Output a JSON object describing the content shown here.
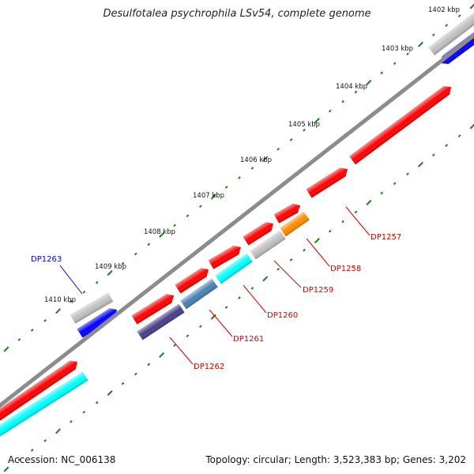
{
  "title": "Desulfotalea psychrophila LSv54, complete genome",
  "accession": "Accession: NC_006138",
  "summary": "Topology: circular; Length: 3,523,383 bp; Genes: 3,202",
  "colors": {
    "backbone": "#8c8c8c",
    "tick": "#1f7a1f",
    "label_red": "#cc0000",
    "label_blue": "#0000cc"
  },
  "kbp_labels": [
    "1402 kbp",
    "1403 kbp",
    "1404 kbp",
    "1405 kbp",
    "1406 kbp",
    "1407 kbp",
    "1408 kbp",
    "1409 kbp",
    "1410 kbp"
  ],
  "genes": [
    {
      "label": "DP1257",
      "color": "#ff0000"
    },
    {
      "label": "DP1258",
      "color": "#ff8c00"
    },
    {
      "label": "DP1259",
      "color": "#c0c0c0"
    },
    {
      "label": "DP1260",
      "color": "#00ffff"
    },
    {
      "label": "DP1261",
      "color": "#4682b4"
    },
    {
      "label": "DP1262",
      "color": "#483d8b"
    },
    {
      "label": "DP1263",
      "color": "#0000ff"
    }
  ]
}
